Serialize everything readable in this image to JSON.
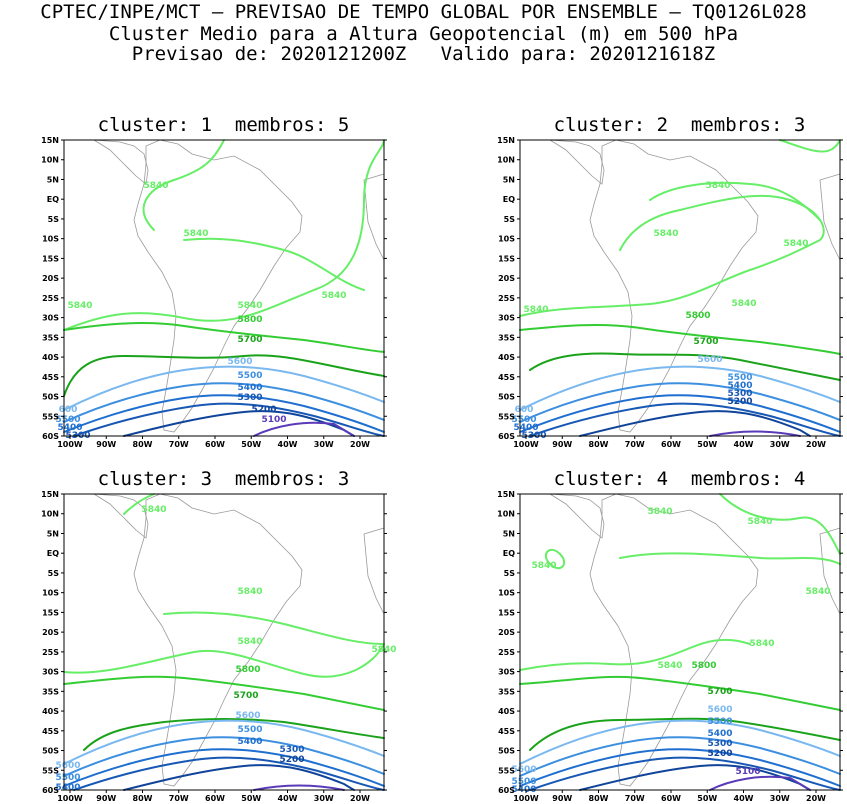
{
  "header": {
    "line1": "CPTEC/INPE/MCT – PREVISAO DE TEMPO GLOBAL POR ENSEMBLE – TQ0126L028",
    "line2": "Cluster Medio para a Altura Geopotencial (m) em 500 hPa",
    "line3": "Previsao de: 2020121200Z   Valido para: 2020121618Z"
  },
  "lat_ticks": [
    "15N",
    "10N",
    "5N",
    "EQ",
    "5S",
    "10S",
    "15S",
    "20S",
    "25S",
    "30S",
    "35S",
    "40S",
    "45S",
    "50S",
    "55S",
    "60S"
  ],
  "lon_ticks": [
    "100W",
    "90W",
    "80W",
    "70W",
    "60W",
    "50W",
    "40W",
    "30W",
    "20W"
  ],
  "contour_colors": {
    "5840": "#66ee66",
    "5800": "#33cc33",
    "5700": "#1aa31a",
    "5600": "#7ab8f0",
    "5500": "#3d8fe0",
    "5400": "#1f6fd0",
    "5300": "#1858b5",
    "5200": "#10449a",
    "5100": "#5a3ab8"
  },
  "panels": [
    {
      "title": "cluster: 1  membros: 5",
      "labels": [
        {
          "text": "5840",
          "c": "5840"
        },
        {
          "text": "5840",
          "c": "5840"
        },
        {
          "text": "5840",
          "c": "5840"
        },
        {
          "text": "5840",
          "c": "5840"
        },
        {
          "text": "5840",
          "c": "5840"
        },
        {
          "text": "5800",
          "c": "5800"
        },
        {
          "text": "5700",
          "c": "5700"
        },
        {
          "text": "5600",
          "c": "5600"
        },
        {
          "text": "5500",
          "c": "5500"
        },
        {
          "text": "5400",
          "c": "5400"
        },
        {
          "text": "5300",
          "c": "5300"
        },
        {
          "text": "5200",
          "c": "5200"
        },
        {
          "text": "5100",
          "c": "5100"
        },
        {
          "text": "600",
          "c": "5600"
        },
        {
          "text": "5500",
          "c": "5500"
        },
        {
          "text": "5400",
          "c": "5400"
        },
        {
          "text": "5300",
          "c": "5300"
        }
      ]
    },
    {
      "title": "cluster: 2  membros: 3",
      "labels": [
        {
          "text": "5840",
          "c": "5840"
        },
        {
          "text": "5840",
          "c": "5840"
        },
        {
          "text": "5840",
          "c": "5840"
        },
        {
          "text": "5840",
          "c": "5840"
        },
        {
          "text": "5840",
          "c": "5840"
        },
        {
          "text": "5800",
          "c": "5800"
        },
        {
          "text": "5700",
          "c": "5700"
        },
        {
          "text": "5600",
          "c": "5600"
        },
        {
          "text": "5500",
          "c": "5500"
        },
        {
          "text": "5400",
          "c": "5400"
        },
        {
          "text": "5300",
          "c": "5300"
        },
        {
          "text": "5200",
          "c": "5200"
        },
        {
          "text": "600",
          "c": "5600"
        },
        {
          "text": "5500",
          "c": "5500"
        },
        {
          "text": "5400",
          "c": "5400"
        },
        {
          "text": "5300",
          "c": "5300"
        }
      ]
    },
    {
      "title": "cluster: 3  membros: 3",
      "labels": [
        {
          "text": "5840",
          "c": "5840"
        },
        {
          "text": "5840",
          "c": "5840"
        },
        {
          "text": "5840",
          "c": "5840"
        },
        {
          "text": "5840",
          "c": "5840"
        },
        {
          "text": "5800",
          "c": "5800"
        },
        {
          "text": "5700",
          "c": "5700"
        },
        {
          "text": "5600",
          "c": "5600"
        },
        {
          "text": "5500",
          "c": "5500"
        },
        {
          "text": "5400",
          "c": "5400"
        },
        {
          "text": "5300",
          "c": "5300"
        },
        {
          "text": "5200",
          "c": "5200"
        },
        {
          "text": "5600",
          "c": "5600"
        },
        {
          "text": "5500",
          "c": "5500"
        },
        {
          "text": "5400",
          "c": "5400"
        }
      ]
    },
    {
      "title": "cluster: 4  membros: 4",
      "labels": [
        {
          "text": "5840",
          "c": "5840"
        },
        {
          "text": "5840",
          "c": "5840"
        },
        {
          "text": "5840",
          "c": "5840"
        },
        {
          "text": "5840",
          "c": "5840"
        },
        {
          "text": "5840",
          "c": "5840"
        },
        {
          "text": "5840",
          "c": "5840"
        },
        {
          "text": "5800",
          "c": "5800"
        },
        {
          "text": "5700",
          "c": "5700"
        },
        {
          "text": "5600",
          "c": "5600"
        },
        {
          "text": "5500",
          "c": "5500"
        },
        {
          "text": "5400",
          "c": "5400"
        },
        {
          "text": "5300",
          "c": "5300"
        },
        {
          "text": "5200",
          "c": "5200"
        },
        {
          "text": "5100",
          "c": "5100"
        },
        {
          "text": "5600",
          "c": "5600"
        },
        {
          "text": "5500",
          "c": "5500"
        },
        {
          "text": "5400",
          "c": "5400"
        }
      ]
    }
  ]
}
